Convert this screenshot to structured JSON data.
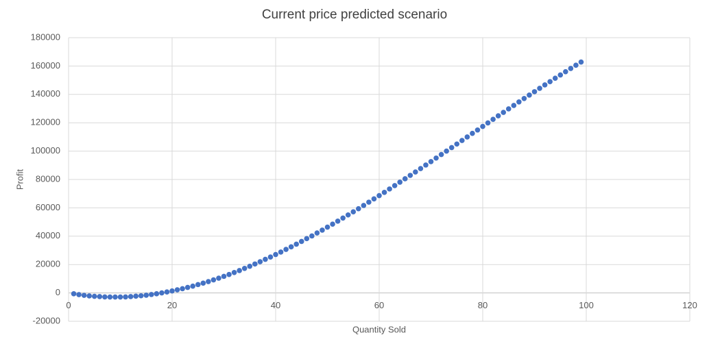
{
  "chart_data": {
    "type": "scatter",
    "title": "Current price predicted scenario",
    "x_label": "Quantity Sold",
    "y_label": "Profit",
    "series": [
      {
        "name": "Profit",
        "color": "#4472c4",
        "x": [
          1,
          2,
          3,
          4,
          5,
          6,
          7,
          8,
          9,
          10,
          11,
          12,
          13,
          14,
          15,
          16,
          17,
          18,
          19,
          20,
          21,
          22,
          23,
          24,
          25,
          26,
          27,
          28,
          29,
          30,
          31,
          32,
          33,
          34,
          35,
          36,
          37,
          38,
          39,
          40,
          41,
          42,
          43,
          44,
          45,
          46,
          47,
          48,
          49,
          50,
          51,
          52,
          53,
          54,
          55,
          56,
          57,
          58,
          59,
          60,
          61,
          62,
          63,
          64,
          65,
          66,
          67,
          68,
          69,
          70,
          71,
          72,
          73,
          74,
          75,
          76,
          77,
          78,
          79,
          80,
          81,
          82,
          83,
          84,
          85,
          86,
          87,
          88,
          89,
          90,
          91,
          92,
          93,
          94,
          95,
          96,
          97,
          98,
          99
        ],
        "values": [
          -600,
          -1200,
          -1700,
          -2100,
          -2400,
          -2600,
          -2800,
          -2900,
          -2900,
          -2900,
          -2800,
          -2600,
          -2300,
          -2000,
          -1600,
          -1100,
          -600,
          0,
          700,
          1400,
          2200,
          3000,
          3900,
          4800,
          5900,
          6900,
          8000,
          9200,
          10400,
          11700,
          13000,
          14400,
          15800,
          17300,
          18800,
          20400,
          22000,
          23700,
          25300,
          27100,
          28800,
          30700,
          32500,
          34400,
          36300,
          38300,
          40200,
          42300,
          44300,
          46400,
          48500,
          50600,
          52800,
          55000,
          57200,
          59400,
          61700,
          64000,
          66300,
          68600,
          70900,
          73300,
          75700,
          78100,
          80500,
          82900,
          85300,
          87700,
          90200,
          92600,
          95100,
          97600,
          100000,
          102500,
          105000,
          107500,
          110000,
          112500,
          114900,
          117400,
          119900,
          122400,
          124900,
          127300,
          129800,
          132200,
          134700,
          137100,
          139500,
          141900,
          144300,
          146700,
          149000,
          151400,
          153700,
          156000,
          158300,
          160600,
          162800
        ]
      }
    ],
    "xlim": [
      0,
      120
    ],
    "xticks": [
      0,
      20,
      40,
      60,
      80,
      100,
      120
    ],
    "ylim": [
      -20000,
      180000
    ],
    "yticks": [
      -20000,
      0,
      20000,
      40000,
      60000,
      80000,
      100000,
      120000,
      140000,
      160000,
      180000
    ],
    "grid": true
  }
}
